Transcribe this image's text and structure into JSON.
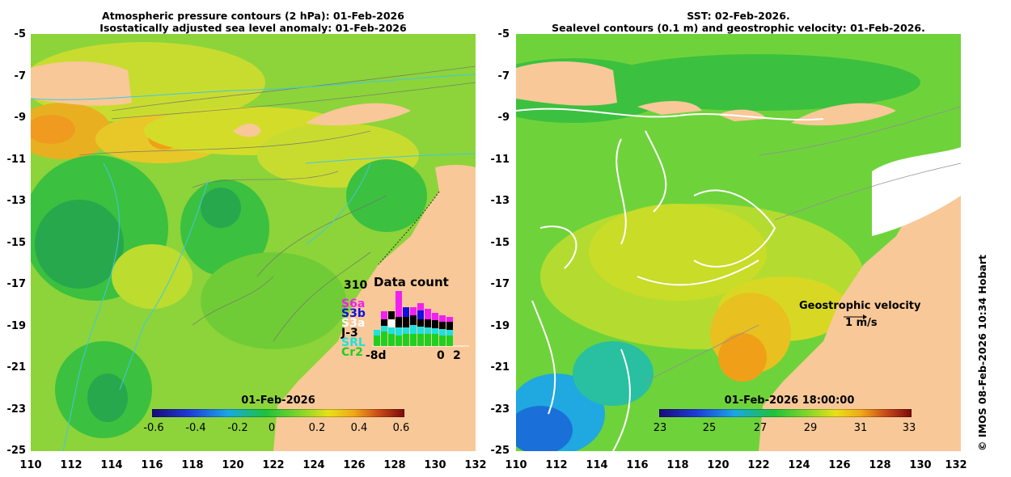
{
  "left_panel": {
    "title_line1": "Atmospheric pressure contours (2 hPa): 01-Feb-2026",
    "title_line2": "Isostatically adjusted sea level anomaly: 01-Feb-2026",
    "colorbar_title": "01-Feb-2026",
    "colorbar_ticks": [
      "-0.6",
      "-0.4",
      "-0.2",
      "0",
      "0.2",
      "0.4",
      "0.6"
    ],
    "colorbar_colors": [
      "#1a0a78",
      "#1f3cd8",
      "#1aa6e6",
      "#1cc23c",
      "#7ed42a",
      "#e8e018",
      "#f0a818",
      "#c84818",
      "#7a0a0a"
    ]
  },
  "right_panel": {
    "title_line1": "SST: 02-Feb-2026.",
    "title_line2": "Sealevel contours (0.1 m) and geostrophic velocity: 01-Feb-2026.",
    "colorbar_title": "01-Feb-2026 18:00:00",
    "colorbar_ticks": [
      "23",
      "25",
      "27",
      "29",
      "31",
      "33"
    ],
    "colorbar_colors": [
      "#1a0a78",
      "#1f3cd8",
      "#1aa6e6",
      "#1cc23c",
      "#7ed42a",
      "#e8e018",
      "#f0a818",
      "#c84818",
      "#7a0a0a"
    ],
    "velocity_label": "Geostrophic velocity",
    "velocity_scale": "1 m/s"
  },
  "axes": {
    "y_ticks": [
      "-5",
      "-7",
      "-9",
      "-11",
      "-13",
      "-15",
      "-17",
      "-19",
      "-21",
      "-23",
      "-25"
    ],
    "x_ticks": [
      "110",
      "112",
      "114",
      "116",
      "118",
      "120",
      "122",
      "124",
      "126",
      "128",
      "130",
      "132"
    ]
  },
  "data_count": {
    "title": "Data count",
    "max_value": "310",
    "x_start": "-8d",
    "x_zero": "0",
    "x_end": "2",
    "satellites": [
      {
        "name": "S6a",
        "color": "#f020f0"
      },
      {
        "name": "S3b",
        "color": "#1010e0"
      },
      {
        "name": "S3a",
        "color": "#ffffff"
      },
      {
        "name": "J-3",
        "color": "#000000"
      },
      {
        "name": "SRL",
        "color": "#20e0e0"
      },
      {
        "name": "Cr2",
        "color": "#20d020"
      }
    ]
  },
  "credit": "© IMOS 08-Feb-2026 10:34 Hobart",
  "colors": {
    "land": "#f8c898",
    "ocean_green": "#6ed33a",
    "ocean_yellow": "#c8dc30"
  }
}
